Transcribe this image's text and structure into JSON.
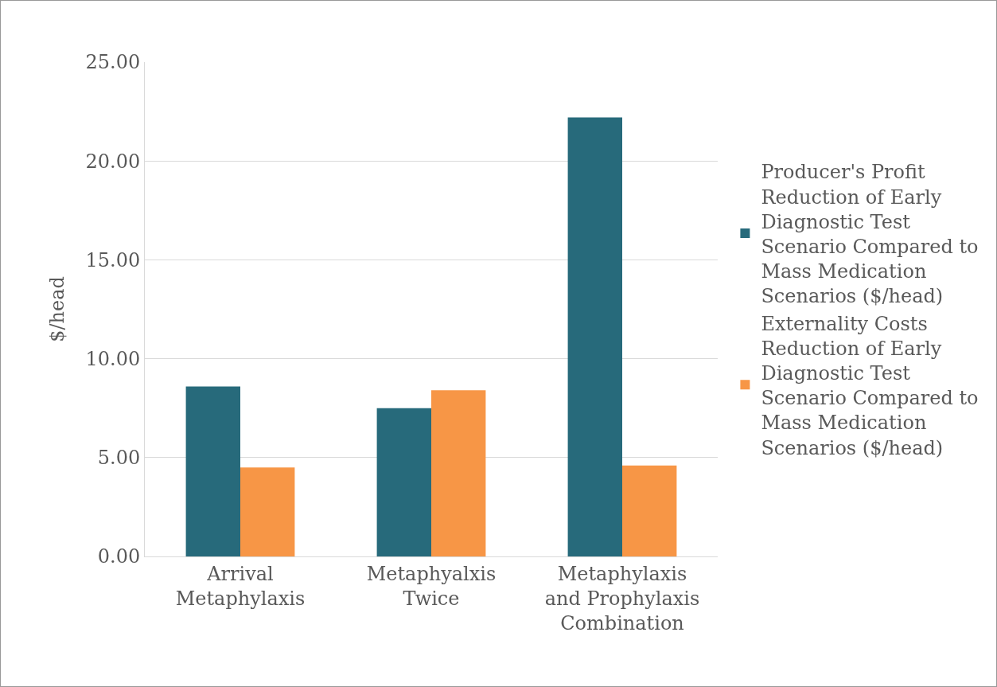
{
  "chart_data": {
    "type": "bar",
    "ylabel": "$/head",
    "categories": [
      "Arrival Metaphylaxis",
      "Metaphyalxis Twice",
      "Metaphylaxis and Prophylaxis Combination"
    ],
    "series": [
      {
        "name": "Producer's Profit Reduction of Early Diagnostic Test Scenario Compared to Mass Medication Scenarios ($/head)",
        "color": "#276a7b",
        "values": [
          8.6,
          7.5,
          22.2
        ]
      },
      {
        "name": "Externality Costs Reduction of Early Diagnostic Test Scenario Compared to Mass Medication Scenarios ($/head)",
        "color": "#f79646",
        "values": [
          4.5,
          8.4,
          4.6
        ]
      }
    ],
    "ylim": [
      0,
      25
    ],
    "yticks": [
      {
        "value": 0,
        "label": "0.00"
      },
      {
        "value": 5,
        "label": "5.00"
      },
      {
        "value": 10,
        "label": "10.00"
      },
      {
        "value": 15,
        "label": "15.00"
      },
      {
        "value": 20,
        "label": "20.00"
      },
      {
        "value": 25,
        "label": "25.00"
      }
    ],
    "grid": "y",
    "legend": "right"
  }
}
